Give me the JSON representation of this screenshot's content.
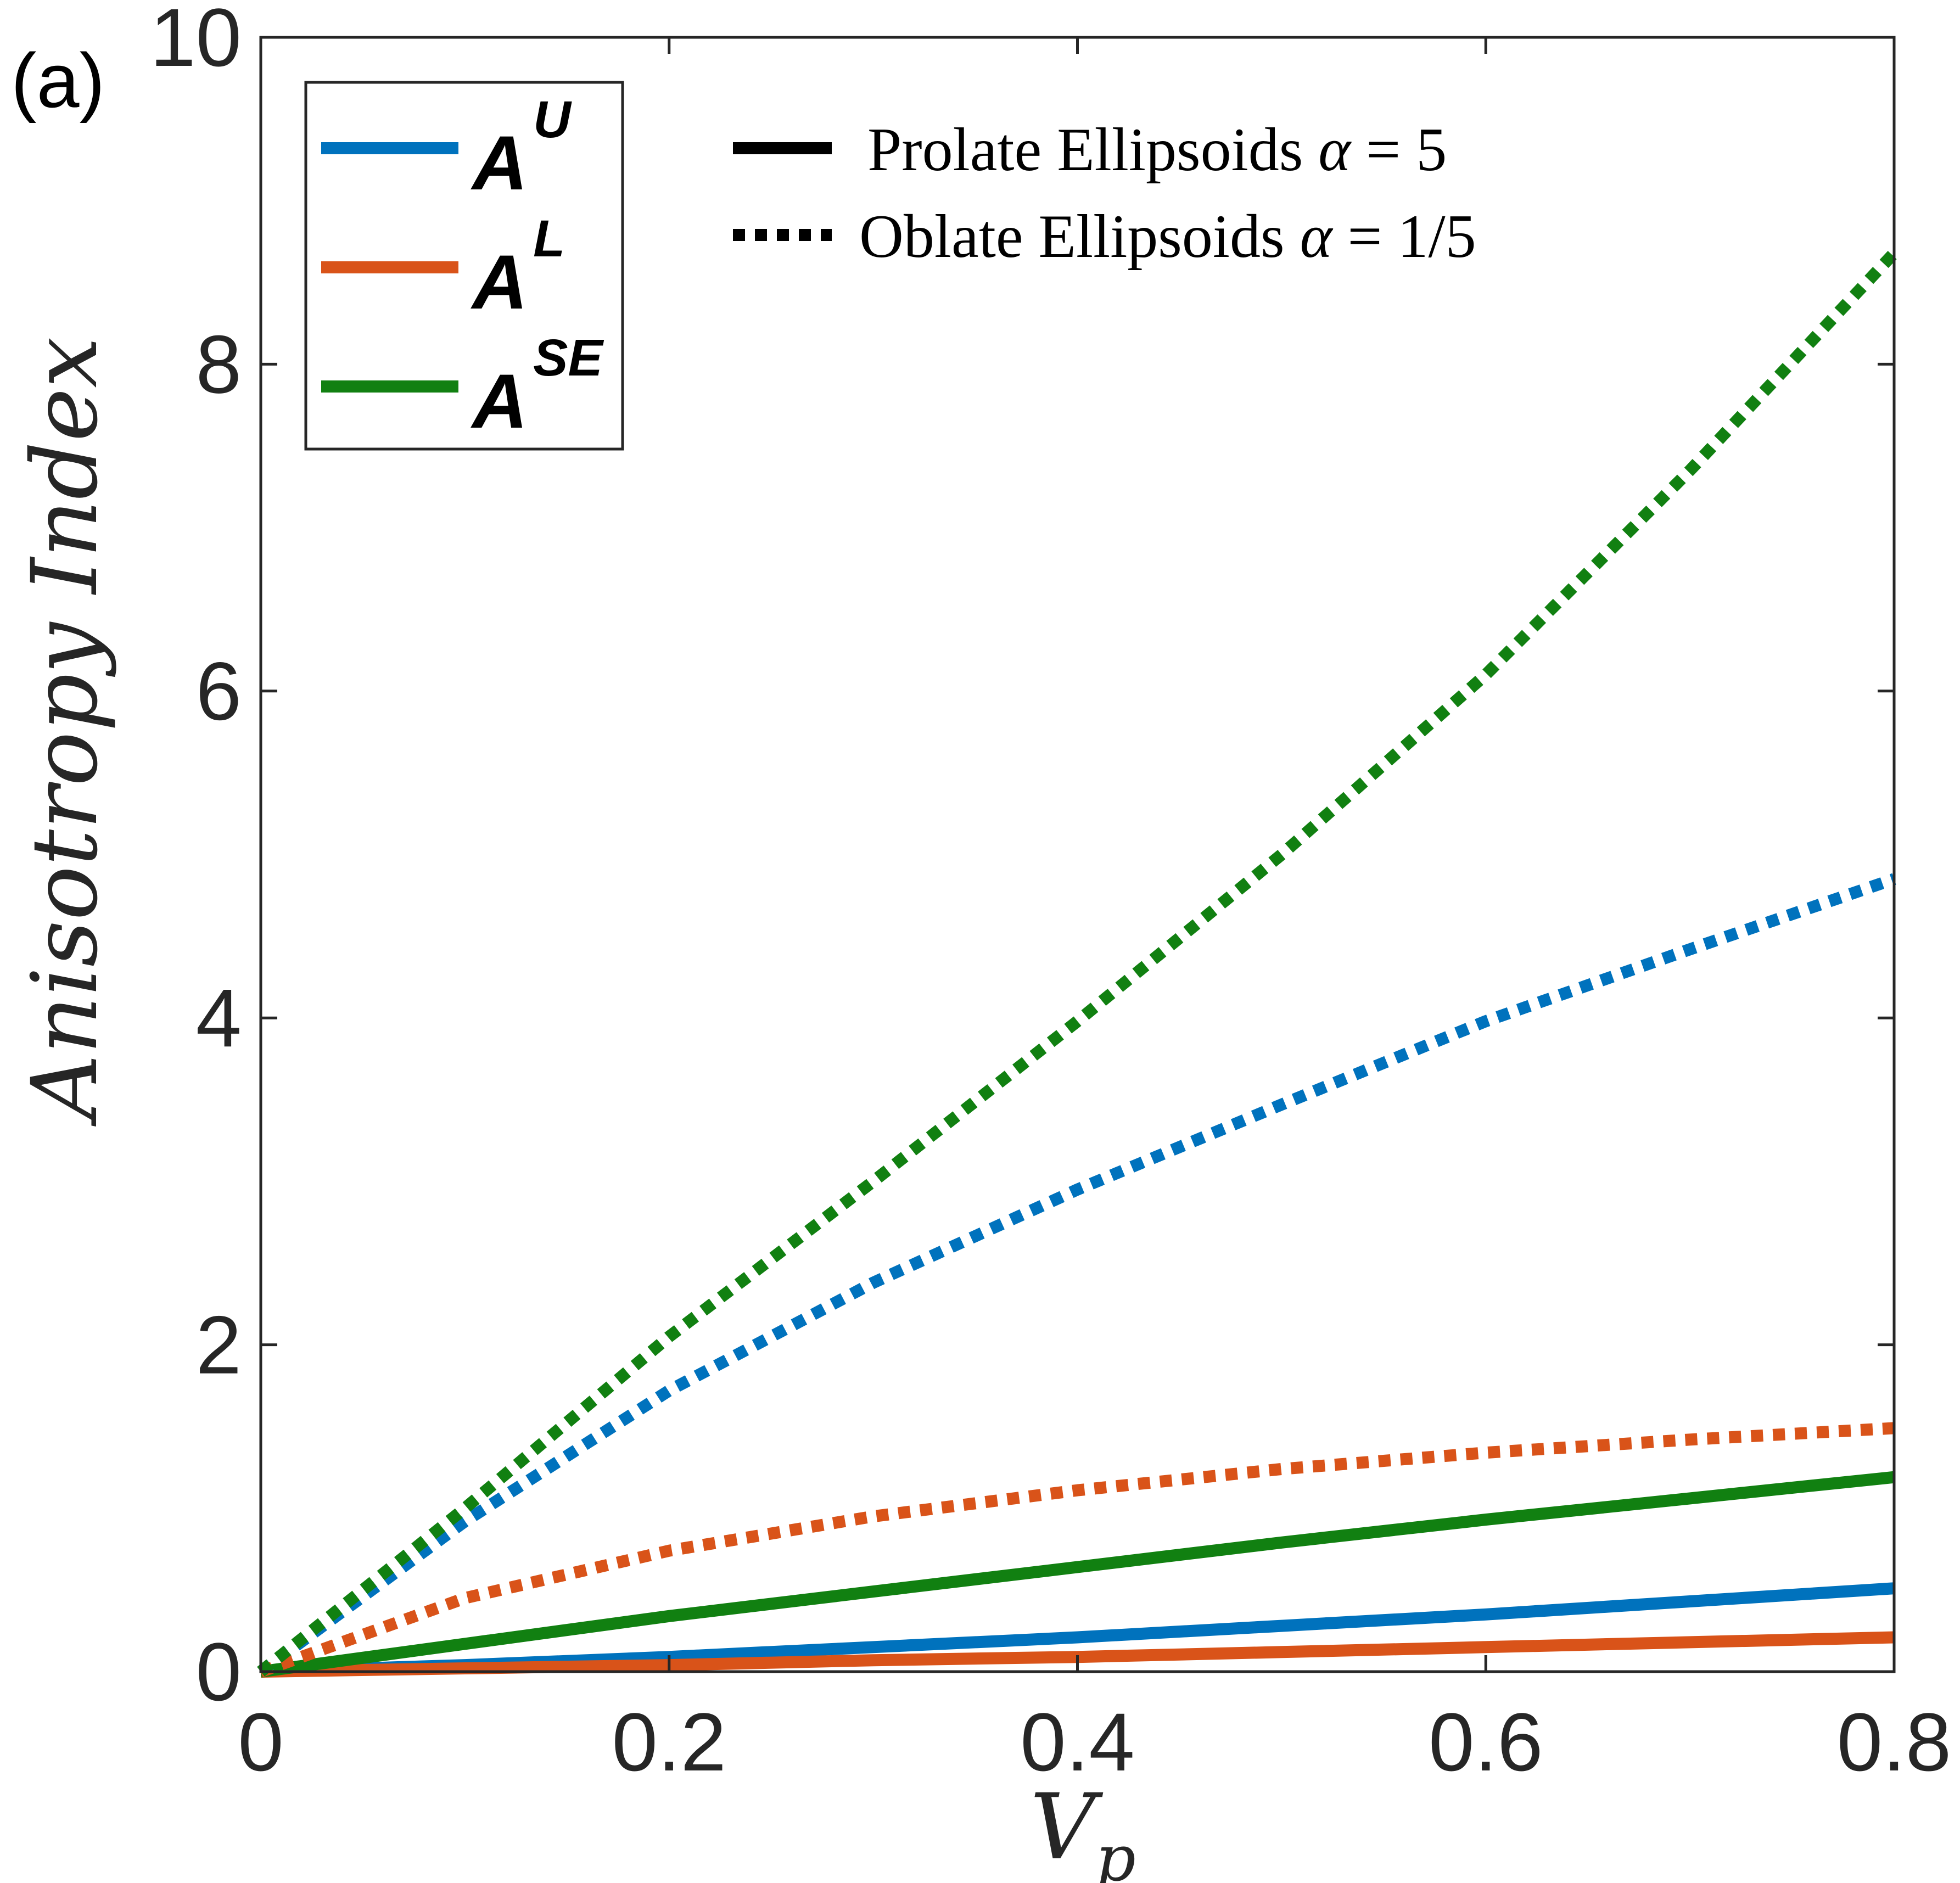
{
  "panel_label": "(a)",
  "chart_data": {
    "type": "line",
    "xlabel": "V",
    "xlabel_sub": "p",
    "ylabel": "Anisotropy Index",
    "xlim": [
      0,
      0.8
    ],
    "ylim": [
      0,
      10
    ],
    "xticks": [
      "0",
      "0.2",
      "0.4",
      "0.6",
      "0.8"
    ],
    "yticks": [
      "0",
      "2",
      "4",
      "6",
      "8",
      "10"
    ],
    "grid": false,
    "colors": {
      "AU": "#0072BD",
      "AL": "#D95319",
      "ASE": "#118011"
    },
    "legend_series": [
      {
        "key": "AU",
        "base": "A",
        "sup": "U"
      },
      {
        "key": "AL",
        "base": "A",
        "sup": "L"
      },
      {
        "key": "ASE",
        "base": "A",
        "sup": "SE"
      }
    ],
    "legend_styles": [
      {
        "style": "solid",
        "label": "Prolate Ellipsoids",
        "math_var": "α",
        "math_rest": " = 5"
      },
      {
        "style": "dotted",
        "label": "Oblate Ellipsoids",
        "math_var": "α",
        "math_rest": " = 1/5"
      }
    ],
    "x": [
      0,
      0.1,
      0.2,
      0.3,
      0.4,
      0.5,
      0.6,
      0.7,
      0.8
    ],
    "series": [
      {
        "key": "AU",
        "style": "solid",
        "values": [
          0,
          0.04,
          0.09,
          0.15,
          0.21,
          0.28,
          0.35,
          0.43,
          0.51
        ]
      },
      {
        "key": "AL",
        "style": "solid",
        "values": [
          0,
          0.02,
          0.04,
          0.07,
          0.09,
          0.12,
          0.15,
          0.18,
          0.21
        ]
      },
      {
        "key": "ASE",
        "style": "solid",
        "values": [
          0,
          0.17,
          0.34,
          0.49,
          0.64,
          0.79,
          0.93,
          1.06,
          1.19
        ]
      },
      {
        "key": "AU",
        "style": "dotted",
        "values": [
          0,
          0.92,
          1.72,
          2.38,
          2.95,
          3.47,
          3.98,
          4.42,
          4.85
        ]
      },
      {
        "key": "AL",
        "style": "dotted",
        "values": [
          0,
          0.45,
          0.74,
          0.95,
          1.11,
          1.24,
          1.34,
          1.42,
          1.49
        ]
      },
      {
        "key": "ASE",
        "style": "dotted",
        "values": [
          0,
          1.0,
          2.05,
          3.0,
          3.98,
          5.0,
          6.1,
          7.35,
          8.68
        ]
      }
    ]
  }
}
